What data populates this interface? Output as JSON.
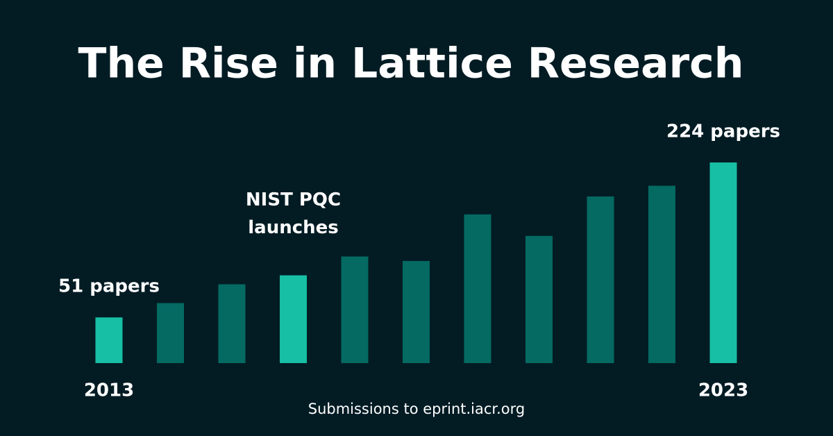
{
  "chart_data": {
    "type": "bar",
    "title": "The Rise in Lattice Research",
    "source": "Submissions to eprint.iacr.org",
    "categories": [
      "2013",
      null,
      null,
      null,
      null,
      null,
      null,
      null,
      null,
      null,
      "2023"
    ],
    "values": [
      51,
      67,
      88,
      98,
      119,
      114,
      166,
      142,
      186,
      198,
      224
    ],
    "value_labels": [
      "51 papers",
      null,
      null,
      null,
      null,
      null,
      null,
      null,
      null,
      null,
      "224 papers"
    ],
    "colors": [
      "#17bfa5",
      "#046a62",
      "#046a62",
      "#17bfa5",
      "#046a62",
      "#046a62",
      "#046a62",
      "#046a62",
      "#046a62",
      "#046a62",
      "#17bfa5"
    ],
    "annotation": {
      "index": 3,
      "lines": [
        "NIST PQC",
        "launches"
      ]
    }
  }
}
